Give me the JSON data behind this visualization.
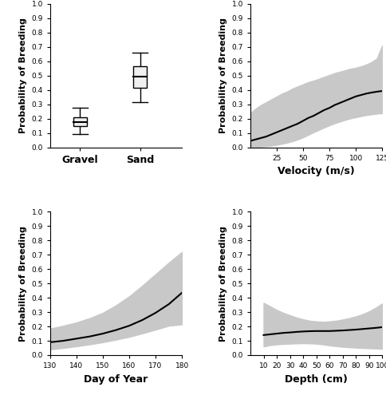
{
  "ylabel": "Probability of Breeding",
  "ci_color": "#c8c8c8",
  "line_color": "#000000",
  "box_facecolor": "#f0f0f0",
  "box_edgecolor": "#000000",
  "gravel_median": 0.175,
  "gravel_q1": 0.148,
  "gravel_q3": 0.208,
  "gravel_whisker_low": 0.09,
  "gravel_whisker_high": 0.278,
  "sand_median": 0.495,
  "sand_q1": 0.415,
  "sand_q3": 0.565,
  "sand_whisker_low": 0.315,
  "sand_whisker_high": 0.66,
  "velocity_x": [
    0,
    5,
    10,
    15,
    20,
    25,
    30,
    35,
    40,
    45,
    50,
    55,
    60,
    65,
    70,
    75,
    80,
    85,
    90,
    95,
    100,
    105,
    110,
    115,
    120,
    125
  ],
  "velocity_y": [
    0.045,
    0.055,
    0.065,
    0.075,
    0.09,
    0.105,
    0.12,
    0.135,
    0.15,
    0.165,
    0.185,
    0.205,
    0.22,
    0.24,
    0.26,
    0.275,
    0.295,
    0.31,
    0.325,
    0.34,
    0.355,
    0.365,
    0.375,
    0.382,
    0.388,
    0.393
  ],
  "velocity_ci_low": [
    0.0,
    0.002,
    0.005,
    0.008,
    0.012,
    0.018,
    0.025,
    0.033,
    0.043,
    0.055,
    0.07,
    0.088,
    0.105,
    0.122,
    0.138,
    0.154,
    0.168,
    0.18,
    0.192,
    0.202,
    0.21,
    0.218,
    0.225,
    0.23,
    0.235,
    0.238
  ],
  "velocity_ci_high": [
    0.24,
    0.27,
    0.295,
    0.315,
    0.335,
    0.355,
    0.375,
    0.39,
    0.41,
    0.425,
    0.44,
    0.455,
    0.465,
    0.478,
    0.492,
    0.505,
    0.518,
    0.528,
    0.538,
    0.548,
    0.555,
    0.565,
    0.578,
    0.595,
    0.62,
    0.71
  ],
  "velocity_xlim": [
    0,
    125
  ],
  "velocity_xticks": [
    25,
    50,
    75,
    100,
    125
  ],
  "velocity_xlabel": "Velocity (m/s)",
  "doy_x": [
    130,
    135,
    140,
    145,
    150,
    155,
    160,
    165,
    170,
    175,
    180
  ],
  "doy_y": [
    0.09,
    0.1,
    0.115,
    0.13,
    0.15,
    0.175,
    0.205,
    0.245,
    0.295,
    0.355,
    0.435
  ],
  "doy_ci_low": [
    0.04,
    0.05,
    0.062,
    0.075,
    0.09,
    0.108,
    0.128,
    0.152,
    0.178,
    0.205,
    0.215
  ],
  "doy_ci_high": [
    0.185,
    0.205,
    0.228,
    0.258,
    0.295,
    0.348,
    0.41,
    0.485,
    0.565,
    0.645,
    0.72
  ],
  "doy_xlim": [
    130,
    180
  ],
  "doy_xticks": [
    130,
    140,
    150,
    160,
    170,
    180
  ],
  "doy_xlabel": "Day of Year",
  "depth_x": [
    10,
    15,
    20,
    25,
    30,
    35,
    40,
    45,
    50,
    55,
    60,
    65,
    70,
    75,
    80,
    85,
    90,
    95,
    100
  ],
  "depth_y": [
    0.14,
    0.145,
    0.15,
    0.155,
    0.158,
    0.162,
    0.165,
    0.167,
    0.168,
    0.168,
    0.168,
    0.17,
    0.172,
    0.175,
    0.178,
    0.182,
    0.186,
    0.19,
    0.195
  ],
  "depth_ci_low": [
    0.06,
    0.07,
    0.075,
    0.078,
    0.08,
    0.082,
    0.083,
    0.082,
    0.08,
    0.075,
    0.068,
    0.063,
    0.058,
    0.055,
    0.052,
    0.05,
    0.048,
    0.046,
    0.044
  ],
  "depth_ci_high": [
    0.365,
    0.34,
    0.315,
    0.295,
    0.278,
    0.262,
    0.25,
    0.24,
    0.235,
    0.232,
    0.235,
    0.24,
    0.248,
    0.258,
    0.27,
    0.285,
    0.305,
    0.33,
    0.36
  ],
  "depth_xlim": [
    0,
    100
  ],
  "depth_xticks": [
    10,
    20,
    30,
    40,
    50,
    60,
    70,
    80,
    90,
    100
  ],
  "depth_xlabel": "Depth (cm)",
  "ylim": [
    0.0,
    1.0
  ],
  "yticks": [
    0.0,
    0.1,
    0.2,
    0.3,
    0.4,
    0.5,
    0.6,
    0.7,
    0.8,
    0.9,
    1.0
  ],
  "tick_fontsize": 6.5,
  "label_fontsize": 8,
  "xlabel_fontsize": 9
}
